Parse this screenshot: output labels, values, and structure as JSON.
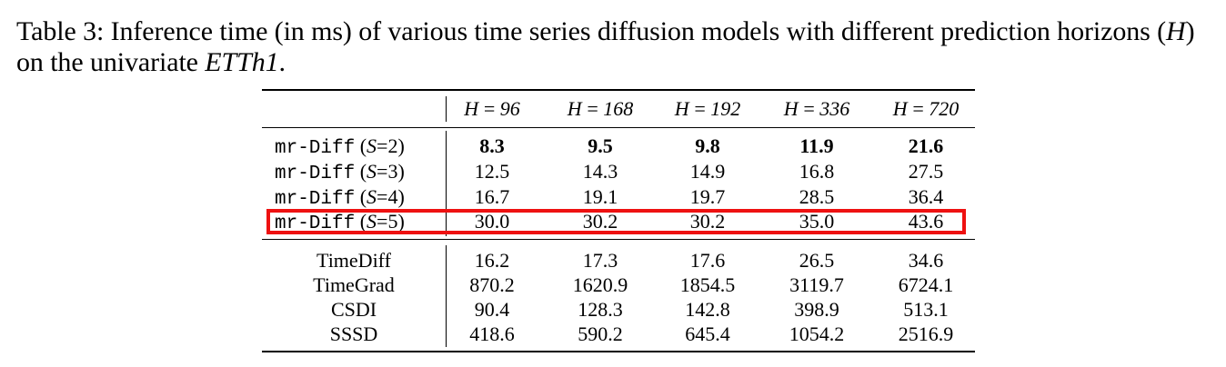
{
  "caption": {
    "prefix": "Table 3: Inference time (in ms) of various time series diffusion models with different prediction horizons (",
    "var": "H",
    "middle": ") on the univariate ",
    "dataset": "ETTh1",
    "suffix": "."
  },
  "header": {
    "cols": [
      "H = 96",
      "H = 168",
      "H = 192",
      "H = 336",
      "H = 720"
    ]
  },
  "mr_diff_rows": [
    {
      "name": "mr-Diff",
      "s_label": "(S=2)",
      "values": [
        "8.3",
        "9.5",
        "9.8",
        "11.9",
        "21.6"
      ],
      "bold": true
    },
    {
      "name": "mr-Diff",
      "s_label": "(S=3)",
      "values": [
        "12.5",
        "14.3",
        "14.9",
        "16.8",
        "27.5"
      ],
      "bold": false
    },
    {
      "name": "mr-Diff",
      "s_label": "(S=4)",
      "values": [
        "16.7",
        "19.1",
        "19.7",
        "28.5",
        "36.4"
      ],
      "bold": false
    },
    {
      "name": "mr-Diff",
      "s_label": "(S=5)",
      "values": [
        "30.0",
        "30.2",
        "30.2",
        "35.0",
        "43.6"
      ],
      "bold": false,
      "highlighted": true
    }
  ],
  "baseline_rows": [
    {
      "name": "TimeDiff",
      "values": [
        "16.2",
        "17.3",
        "17.6",
        "26.5",
        "34.6"
      ]
    },
    {
      "name": "TimeGrad",
      "values": [
        "870.2",
        "1620.9",
        "1854.5",
        "3119.7",
        "6724.1"
      ]
    },
    {
      "name": "CSDI",
      "values": [
        "90.4",
        "128.3",
        "142.8",
        "398.9",
        "513.1"
      ]
    },
    {
      "name": "SSSD",
      "values": [
        "418.6",
        "590.2",
        "645.4",
        "1054.2",
        "2516.9"
      ]
    }
  ],
  "colors": {
    "highlight_box": "#ee1111",
    "text": "#000000"
  }
}
